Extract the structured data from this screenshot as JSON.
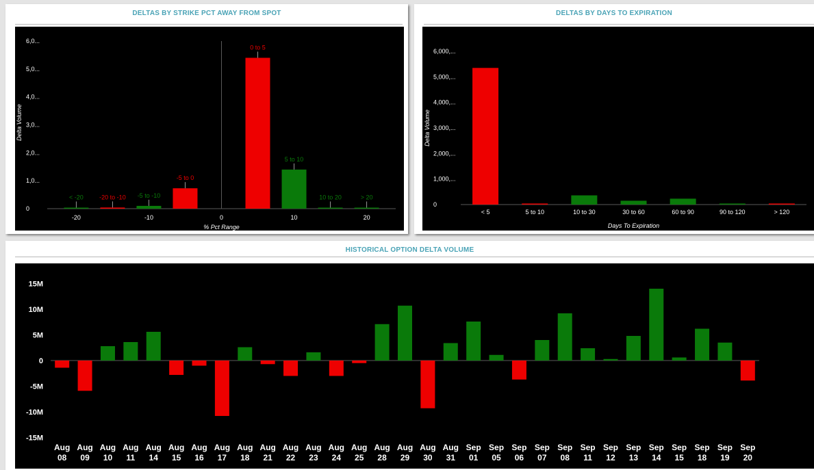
{
  "panels": {
    "strike": {
      "title": "DELTAS BY STRIKE PCT AWAY FROM SPOT"
    },
    "days": {
      "title": "DELTAS BY DAYS TO EXPIRATION"
    },
    "history": {
      "title": "HISTORICAL OPTION DELTA VOLUME"
    }
  },
  "colors": {
    "positive": "#0a7a0a",
    "negative": "#ee0000",
    "title": "#4aa3b6",
    "background": "#000000"
  },
  "chart_data": [
    {
      "type": "bar",
      "title": "DELTAS BY STRIKE PCT AWAY FROM SPOT",
      "xlabel": "% Pct Range",
      "ylabel": "Delta Volume",
      "xlim": [
        -24,
        24
      ],
      "ylim": [
        0,
        6000
      ],
      "xticks": [
        "-20",
        "-10",
        "0",
        "10",
        "20"
      ],
      "xtick_values": [
        -20,
        -10,
        0,
        10,
        20
      ],
      "yticks": [
        "0",
        "1,0...",
        "2,0...",
        "3,0...",
        "4,0...",
        "5,0...",
        "6,0..."
      ],
      "ytick_values": [
        0,
        1000,
        2000,
        3000,
        4000,
        5000,
        6000
      ],
      "bars": [
        {
          "label": "< -20",
          "center": -20,
          "value": 10,
          "sign": "positive"
        },
        {
          "label": "-20 to -10",
          "center": -15,
          "value": 40,
          "sign": "negative"
        },
        {
          "label": "-5 to -10",
          "center": -10,
          "value": 100,
          "sign": "positive"
        },
        {
          "label": "-5 to 0",
          "center": -5,
          "value": 730,
          "sign": "negative"
        },
        {
          "label": "0 to 5",
          "center": 5,
          "value": 5400,
          "sign": "negative"
        },
        {
          "label": "5 to 10",
          "center": 10,
          "value": 1400,
          "sign": "positive"
        },
        {
          "label": "10 to 20",
          "center": 15,
          "value": 20,
          "sign": "positive"
        },
        {
          "label": "> 20",
          "center": 20,
          "value": 10,
          "sign": "positive"
        }
      ]
    },
    {
      "type": "bar",
      "title": "DELTAS BY DAYS TO EXPIRATION",
      "xlabel": "Days To Expiration",
      "ylabel": "Delta Volume",
      "ylim": [
        0,
        6000
      ],
      "yticks": [
        "0",
        "1,000,...",
        "2,000,...",
        "3,000,...",
        "4,000,...",
        "5,000,...",
        "6,000,..."
      ],
      "ytick_values": [
        0,
        1000,
        2000,
        3000,
        4000,
        5000,
        6000
      ],
      "categories": [
        "< 5",
        "5 to 10",
        "10 to 30",
        "30 to 60",
        "60 to 90",
        "90 to 120",
        "> 120"
      ],
      "values": [
        5350,
        40,
        360,
        150,
        230,
        20,
        15
      ],
      "signs": [
        "negative",
        "negative",
        "positive",
        "positive",
        "positive",
        "positive",
        "negative"
      ]
    },
    {
      "type": "bar",
      "title": "HISTORICAL OPTION DELTA VOLUME",
      "ylim": [
        -15,
        15
      ],
      "yticks": [
        "-15M",
        "-10M",
        "-5M",
        "0",
        "5M",
        "10M",
        "15M"
      ],
      "ytick_values": [
        -15,
        -10,
        -5,
        0,
        5,
        10,
        15
      ],
      "categories": [
        [
          "Aug",
          "08"
        ],
        [
          "Aug",
          "09"
        ],
        [
          "Aug",
          "10"
        ],
        [
          "Aug",
          "11"
        ],
        [
          "Aug",
          "14"
        ],
        [
          "Aug",
          "15"
        ],
        [
          "Aug",
          "16"
        ],
        [
          "Aug",
          "17"
        ],
        [
          "Aug",
          "18"
        ],
        [
          "Aug",
          "21"
        ],
        [
          "Aug",
          "22"
        ],
        [
          "Aug",
          "23"
        ],
        [
          "Aug",
          "24"
        ],
        [
          "Aug",
          "25"
        ],
        [
          "Aug",
          "28"
        ],
        [
          "Aug",
          "29"
        ],
        [
          "Aug",
          "30"
        ],
        [
          "Aug",
          "31"
        ],
        [
          "Sep",
          "01"
        ],
        [
          "Sep",
          "05"
        ],
        [
          "Sep",
          "06"
        ],
        [
          "Sep",
          "07"
        ],
        [
          "Sep",
          "08"
        ],
        [
          "Sep",
          "11"
        ],
        [
          "Sep",
          "12"
        ],
        [
          "Sep",
          "13"
        ],
        [
          "Sep",
          "14"
        ],
        [
          "Sep",
          "15"
        ],
        [
          "Sep",
          "18"
        ],
        [
          "Sep",
          "19"
        ],
        [
          "Sep",
          "20"
        ]
      ],
      "values": [
        -1.4,
        -5.9,
        2.8,
        3.6,
        5.6,
        -2.8,
        -1.0,
        -10.8,
        2.6,
        -0.7,
        -3.0,
        1.6,
        -3.0,
        -0.5,
        7.1,
        10.7,
        -9.3,
        3.4,
        7.6,
        1.1,
        -3.7,
        4.0,
        9.2,
        2.4,
        0.3,
        4.8,
        14.0,
        0.6,
        6.2,
        3.5,
        -3.9
      ]
    }
  ]
}
